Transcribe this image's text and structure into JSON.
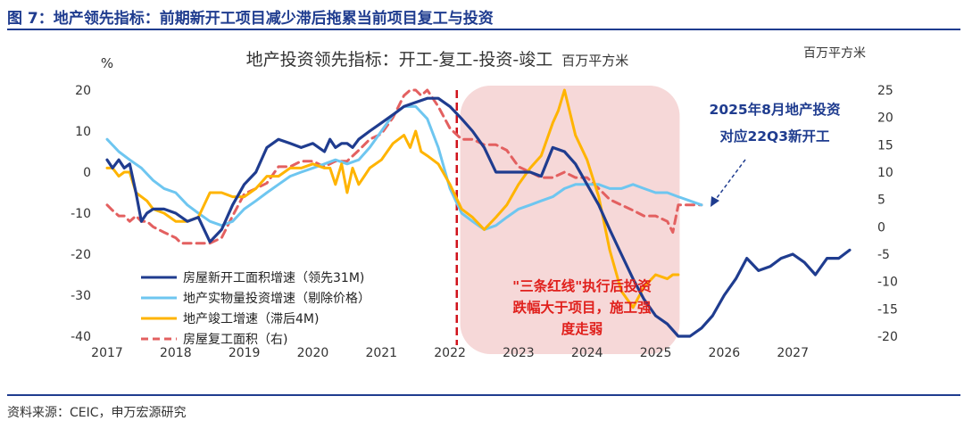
{
  "figure": {
    "title": "图 7：地产领先指标：前期新开工项目减少滞后拖累当前项目复工与投资",
    "source": "资料来源：CEIC，申万宏源研究"
  },
  "colors": {
    "accent": "#1f3c8f",
    "new_starts": "#1f3c8f",
    "investment": "#6ec6f0",
    "completions": "#ffb400",
    "resumption": "#e36060",
    "shade": "#f6d8d8",
    "annotation": "#e0201c"
  },
  "chart_data": {
    "type": "line",
    "title": "地产投资领先指标：开工-复工-投资-竣工",
    "title_unit": "百万平方米",
    "left_axis_label": "%",
    "right_axis_label": "百万平方米",
    "left_ylim": [
      -40,
      20
    ],
    "left_ticks": [
      "20",
      "10",
      "0",
      "-10",
      "-20",
      "-30",
      "-40"
    ],
    "right_ylim": [
      -20,
      25
    ],
    "right_ticks": [
      "25",
      "20",
      "15",
      "10",
      "5",
      "0",
      "-5",
      "-10",
      "-15",
      "-20"
    ],
    "xlim": [
      2017.0,
      2028.0
    ],
    "x_ticks": [
      "2017",
      "2018",
      "2019",
      "2020",
      "2021",
      "2022",
      "2023",
      "2024",
      "2025",
      "2026",
      "2027"
    ],
    "vertical_marker_x": 2022.1,
    "shaded_range": [
      2022.15,
      2025.35
    ],
    "annotations": {
      "shade_text_1": "\"三条红线\"执行后投资",
      "shade_text_2": "跌幅大于项目，施工强",
      "shade_text_3": "度走弱",
      "callout_1": "2025年8月地产投资",
      "callout_2": "对应22Q3新开工"
    },
    "legend": [
      {
        "key": "new_starts",
        "label": "房屋新开工面积增速（领先31M)",
        "style": "solid"
      },
      {
        "key": "investment",
        "label": "地产实物量投资增速（剔除价格）",
        "style": "solid"
      },
      {
        "key": "completions",
        "label": "地产竣工增速（滞后4M)",
        "style": "solid"
      },
      {
        "key": "resumption",
        "label": "房屋复工面积（右)",
        "style": "dashed"
      }
    ],
    "series": [
      {
        "key": "new_starts",
        "name": "房屋新开工面积增速（领先31M)",
        "axis": "left",
        "x": [
          2017.0,
          2017.08,
          2017.17,
          2017.25,
          2017.33,
          2017.42,
          2017.5,
          2017.58,
          2017.67,
          2017.83,
          2018.0,
          2018.17,
          2018.33,
          2018.5,
          2018.67,
          2018.83,
          2019.0,
          2019.17,
          2019.33,
          2019.5,
          2019.67,
          2019.83,
          2020.0,
          2020.17,
          2020.25,
          2020.33,
          2020.42,
          2020.5,
          2020.58,
          2020.67,
          2020.83,
          2021.0,
          2021.17,
          2021.33,
          2021.5,
          2021.67,
          2021.83,
          2022.0,
          2022.17,
          2022.33,
          2022.5,
          2022.67,
          2022.83,
          2023.0,
          2023.17,
          2023.33,
          2023.5,
          2023.67,
          2023.83,
          2024.0,
          2024.17,
          2024.33,
          2024.5,
          2024.67,
          2024.83,
          2025.0,
          2025.17,
          2025.33,
          2025.5,
          2025.67,
          2025.83,
          2026.0,
          2026.17,
          2026.33,
          2026.5,
          2026.67,
          2026.83,
          2027.0,
          2027.17,
          2027.33,
          2027.5,
          2027.67,
          2027.83
        ],
        "values": [
          3,
          1,
          3,
          1,
          2,
          -5,
          -12,
          -10,
          -9,
          -9,
          -10,
          -12,
          -11,
          -17,
          -14,
          -8,
          -3,
          0,
          6,
          8,
          7,
          6,
          7,
          5,
          8,
          6,
          7,
          7,
          6,
          8,
          10,
          12,
          14,
          16,
          17,
          18,
          18,
          16,
          13,
          10,
          6,
          0,
          0,
          0,
          0,
          -1,
          6,
          5,
          2,
          -3,
          -8,
          -14,
          -20,
          -26,
          -31,
          -35,
          -37,
          -40,
          -40,
          -38,
          -35,
          -30,
          -26,
          -21,
          -24,
          -23,
          -21,
          -20,
          -22,
          -25,
          -21,
          -21,
          -19
        ]
      },
      {
        "key": "investment",
        "name": "地产实物量投资增速（剔除价格）",
        "axis": "left",
        "x": [
          2017.0,
          2017.17,
          2017.33,
          2017.5,
          2017.67,
          2017.83,
          2018.0,
          2018.17,
          2018.33,
          2018.5,
          2018.67,
          2018.83,
          2019.0,
          2019.17,
          2019.33,
          2019.5,
          2019.67,
          2019.83,
          2020.0,
          2020.17,
          2020.33,
          2020.5,
          2020.67,
          2020.83,
          2021.0,
          2021.17,
          2021.33,
          2021.5,
          2021.67,
          2021.83,
          2022.0,
          2022.17,
          2022.33,
          2022.5,
          2022.67,
          2022.83,
          2023.0,
          2023.17,
          2023.33,
          2023.5,
          2023.67,
          2023.83,
          2024.0,
          2024.17,
          2024.33,
          2024.5,
          2024.67,
          2024.83,
          2025.0,
          2025.17,
          2025.33,
          2025.5,
          2025.67
        ],
        "values": [
          8,
          5,
          3,
          1,
          -2,
          -4,
          -5,
          -8,
          -10,
          -12,
          -13,
          -12,
          -9,
          -7,
          -5,
          -3,
          -1,
          0,
          1,
          2,
          3,
          2,
          3,
          6,
          10,
          14,
          16,
          16,
          13,
          6,
          -4,
          -10,
          -12,
          -14,
          -13,
          -11,
          -9,
          -8,
          -7,
          -6,
          -4,
          -3,
          -3,
          -3,
          -4,
          -4,
          -3,
          -4,
          -5,
          -5,
          -6,
          -7,
          -8
        ]
      },
      {
        "key": "completions",
        "name": "地产竣工增速（滞后4M)",
        "axis": "left",
        "x": [
          2017.0,
          2017.08,
          2017.17,
          2017.25,
          2017.33,
          2017.42,
          2017.5,
          2017.58,
          2017.67,
          2017.83,
          2018.0,
          2018.17,
          2018.33,
          2018.5,
          2018.67,
          2018.83,
          2019.0,
          2019.17,
          2019.33,
          2019.5,
          2019.67,
          2019.83,
          2020.0,
          2020.17,
          2020.25,
          2020.33,
          2020.42,
          2020.5,
          2020.58,
          2020.67,
          2020.75,
          2020.83,
          2021.0,
          2021.17,
          2021.33,
          2021.42,
          2021.5,
          2021.58,
          2021.67,
          2021.83,
          2022.0,
          2022.17,
          2022.33,
          2022.5,
          2022.67,
          2022.83,
          2023.0,
          2023.17,
          2023.33,
          2023.5,
          2023.58,
          2023.67,
          2023.83,
          2024.0,
          2024.17,
          2024.33,
          2024.5,
          2024.67,
          2024.83,
          2025.0,
          2025.17,
          2025.25,
          2025.33
        ],
        "values": [
          1,
          1,
          -1,
          0,
          0,
          -5,
          -6,
          -7,
          -9,
          -10,
          -12,
          -12,
          -11,
          -5,
          -5,
          -6,
          -6,
          -4,
          -1,
          -1,
          1,
          1,
          2,
          1,
          1,
          -3,
          2,
          -5,
          1,
          -3,
          -1,
          1,
          3,
          7,
          9,
          6,
          10,
          5,
          4,
          2,
          -3,
          -9,
          -11,
          -14,
          -11,
          -8,
          -3,
          1,
          4,
          12,
          15,
          20,
          9,
          3,
          -6,
          -19,
          -29,
          -33,
          -28,
          -25,
          -26,
          -25,
          -25
        ]
      },
      {
        "key": "resumption",
        "name": "房屋复工面积（右)",
        "axis": "right",
        "x": [
          2017.0,
          2017.08,
          2017.17,
          2017.25,
          2017.33,
          2017.42,
          2017.5,
          2017.58,
          2017.67,
          2017.83,
          2018.0,
          2018.08,
          2018.17,
          2018.33,
          2018.5,
          2018.67,
          2018.83,
          2019.0,
          2019.17,
          2019.33,
          2019.5,
          2019.67,
          2019.83,
          2020.0,
          2020.17,
          2020.33,
          2020.5,
          2020.67,
          2020.83,
          2021.0,
          2021.17,
          2021.33,
          2021.42,
          2021.5,
          2021.58,
          2021.67,
          2021.83,
          2022.0,
          2022.17,
          2022.33,
          2022.5,
          2022.67,
          2022.83,
          2023.0,
          2023.17,
          2023.33,
          2023.5,
          2023.67,
          2023.83,
          2024.0,
          2024.17,
          2024.33,
          2024.5,
          2024.67,
          2024.83,
          2025.0,
          2025.17,
          2025.25,
          2025.33,
          2025.5,
          2025.67
        ],
        "values": [
          4,
          3,
          2,
          2,
          1,
          2,
          1,
          1,
          0,
          -1,
          -2,
          -3,
          -3,
          -3,
          -3,
          -2,
          2,
          6,
          7,
          8,
          11,
          11,
          12,
          12,
          11,
          12,
          12,
          14,
          16,
          17,
          20,
          24,
          25,
          25,
          24,
          25,
          22,
          18,
          16,
          16,
          15,
          15,
          14,
          11,
          10,
          9,
          9,
          10,
          9,
          9,
          7,
          5,
          4,
          3,
          2,
          2,
          1,
          -1,
          4,
          4,
          4
        ]
      }
    ]
  }
}
